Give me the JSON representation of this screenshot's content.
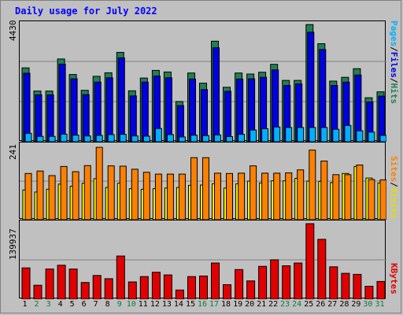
{
  "title": "Daily usage for July 2022",
  "panels": {
    "hits": {
      "max_label": "4430"
    },
    "sites": {
      "max_label": "241"
    },
    "kbytes": {
      "max_label": "139937"
    }
  },
  "legend": {
    "pages": "Pages",
    "files": "Files",
    "hits": "Hits",
    "sites": "Sites",
    "visits": "Visits",
    "kbytes": "KBytes",
    "sep": "/"
  },
  "colors": {
    "hits": "#208050",
    "files": "#0000e0",
    "pages": "#00b0ff",
    "visits": "#ffff00",
    "sites": "#ff8000",
    "kbytes": "#e00000",
    "weekend": "#008040",
    "weekday": "#000000"
  },
  "days": [
    "1",
    "2",
    "3",
    "4",
    "5",
    "6",
    "7",
    "8",
    "9",
    "10",
    "11",
    "12",
    "13",
    "14",
    "15",
    "16",
    "17",
    "18",
    "19",
    "20",
    "21",
    "22",
    "23",
    "24",
    "25",
    "26",
    "27",
    "28",
    "29",
    "30",
    "31"
  ],
  "weekend_days": [
    2,
    3,
    9,
    10,
    16,
    17,
    23,
    24,
    30,
    31
  ],
  "chart_data": [
    {
      "type": "bar",
      "title": "Daily usage for July 2022",
      "categories": [
        "1",
        "2",
        "3",
        "4",
        "5",
        "6",
        "7",
        "8",
        "9",
        "10",
        "11",
        "12",
        "13",
        "14",
        "15",
        "16",
        "17",
        "18",
        "19",
        "20",
        "21",
        "22",
        "23",
        "24",
        "25",
        "26",
        "27",
        "28",
        "29",
        "30",
        "31"
      ],
      "ylim": [
        0,
        4430
      ],
      "series": [
        {
          "name": "Hits",
          "values": [
            2900,
            1990,
            1990,
            3250,
            2640,
            2020,
            2570,
            2710,
            3510,
            2000,
            2500,
            2800,
            2740,
            1580,
            2700,
            2300,
            3950,
            2140,
            2700,
            2660,
            2730,
            3040,
            2410,
            2410,
            4600,
            3850,
            2380,
            2530,
            2870,
            1730,
            1960
          ]
        },
        {
          "name": "Files",
          "values": [
            2690,
            1840,
            1840,
            3050,
            2470,
            1850,
            2340,
            2510,
            3290,
            1800,
            2340,
            2580,
            2510,
            1420,
            2460,
            2050,
            3690,
            1980,
            2460,
            2470,
            2530,
            2820,
            2210,
            2270,
            4300,
            3620,
            2210,
            2340,
            2620,
            1560,
            1790
          ]
        },
        {
          "name": "Pages",
          "values": [
            330,
            210,
            210,
            300,
            260,
            230,
            250,
            280,
            290,
            230,
            220,
            520,
            280,
            190,
            260,
            240,
            270,
            200,
            290,
            460,
            510,
            580,
            560,
            560,
            560,
            560,
            490,
            640,
            430,
            380,
            250
          ]
        }
      ]
    },
    {
      "type": "bar",
      "categories": [
        "1",
        "2",
        "3",
        "4",
        "5",
        "6",
        "7",
        "8",
        "9",
        "10",
        "11",
        "12",
        "13",
        "14",
        "15",
        "16",
        "17",
        "18",
        "19",
        "20",
        "21",
        "22",
        "23",
        "24",
        "25",
        "26",
        "27",
        "28",
        "29",
        "30",
        "31"
      ],
      "ylim": [
        0,
        241
      ],
      "series": [
        {
          "name": "Sites",
          "values": [
            152,
            160,
            145,
            175,
            158,
            178,
            238,
            177,
            176,
            166,
            156,
            150,
            150,
            150,
            204,
            204,
            153,
            152,
            153,
            177,
            153,
            153,
            154,
            164,
            229,
            193,
            148,
            148,
            180,
            132,
            131
          ]
        },
        {
          "name": "Visits",
          "values": [
            98,
            91,
            100,
            117,
            110,
            120,
            135,
            106,
            120,
            102,
            100,
            102,
            104,
            106,
            113,
            114,
            118,
            104,
            118,
            127,
            121,
            128,
            128,
            136,
            127,
            126,
            122,
            152,
            175,
            137,
            121
          ]
        }
      ]
    },
    {
      "type": "bar",
      "categories": [
        "1",
        "2",
        "3",
        "4",
        "5",
        "6",
        "7",
        "8",
        "9",
        "10",
        "11",
        "12",
        "13",
        "14",
        "15",
        "16",
        "17",
        "18",
        "19",
        "20",
        "21",
        "22",
        "23",
        "24",
        "25",
        "26",
        "27",
        "28",
        "29",
        "30",
        "31"
      ],
      "ylim": [
        0,
        139937
      ],
      "series": [
        {
          "name": "KBytes",
          "values": [
            58000,
            26000,
            56000,
            63000,
            56000,
            31000,
            44000,
            38000,
            80000,
            32000,
            42000,
            50000,
            45000,
            17000,
            42000,
            43000,
            67000,
            27000,
            55000,
            34000,
            61000,
            73000,
            62000,
            67000,
            140000,
            111000,
            60000,
            48000,
            46000,
            24000,
            33000
          ]
        }
      ]
    }
  ]
}
